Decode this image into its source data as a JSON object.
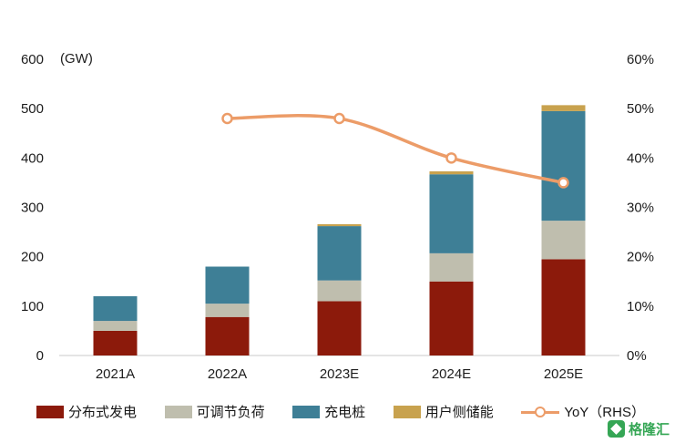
{
  "unit_label": "(GW)",
  "colors": {
    "bar_distributed": "#8C1A0B",
    "bar_adjustable": "#BFBEAE",
    "bar_charging": "#3E7F96",
    "bar_storage": "#C8A24E",
    "line_yoy": "#EC9C68",
    "axis_text": "#1c1c1c",
    "axis_line": "#c9c9c9",
    "watermark_green": "#2BA24C"
  },
  "chart_data": {
    "type": "bar",
    "note": "stacked bars on left axis (GW) + YoY line on right axis (%)",
    "categories": [
      "2021A",
      "2022A",
      "2023E",
      "2024E",
      "2025E"
    ],
    "series": [
      {
        "name": "分布式发电",
        "color_key": "bar_distributed",
        "values": [
          50,
          78,
          110,
          150,
          195
        ]
      },
      {
        "name": "可调节负荷",
        "color_key": "bar_adjustable",
        "values": [
          20,
          27,
          42,
          57,
          78
        ]
      },
      {
        "name": "充电桩",
        "color_key": "bar_charging",
        "values": [
          50,
          75,
          110,
          160,
          222
        ]
      },
      {
        "name": "用户侧储能",
        "color_key": "bar_storage",
        "values": [
          0,
          0,
          4,
          6,
          12
        ]
      }
    ],
    "line_series": {
      "name": "YoY（RHS）",
      "color_key": "line_yoy",
      "values": [
        null,
        48,
        48,
        40,
        35
      ]
    },
    "left_axis": {
      "min": 0,
      "max": 600,
      "step": 100,
      "ticks": [
        "0",
        "100",
        "200",
        "300",
        "400",
        "500",
        "600"
      ],
      "unit": "GW"
    },
    "right_axis": {
      "min": 0,
      "max": 60,
      "step": 10,
      "ticks": [
        "0%",
        "10%",
        "20%",
        "30%",
        "40%",
        "50%",
        "60%"
      ]
    },
    "grid": false,
    "legend_position": "bottom"
  },
  "legend": {
    "items": [
      {
        "label": "分布式发电",
        "type": "swatch",
        "color_key": "bar_distributed"
      },
      {
        "label": "可调节负荷",
        "type": "swatch",
        "color_key": "bar_adjustable"
      },
      {
        "label": "充电桩",
        "type": "swatch",
        "color_key": "bar_charging"
      },
      {
        "label": "用户侧储能",
        "type": "swatch",
        "color_key": "bar_storage"
      },
      {
        "label": "YoY（RHS）",
        "type": "line-marker",
        "color_key": "line_yoy"
      }
    ]
  },
  "watermark": {
    "text": "格隆汇"
  }
}
